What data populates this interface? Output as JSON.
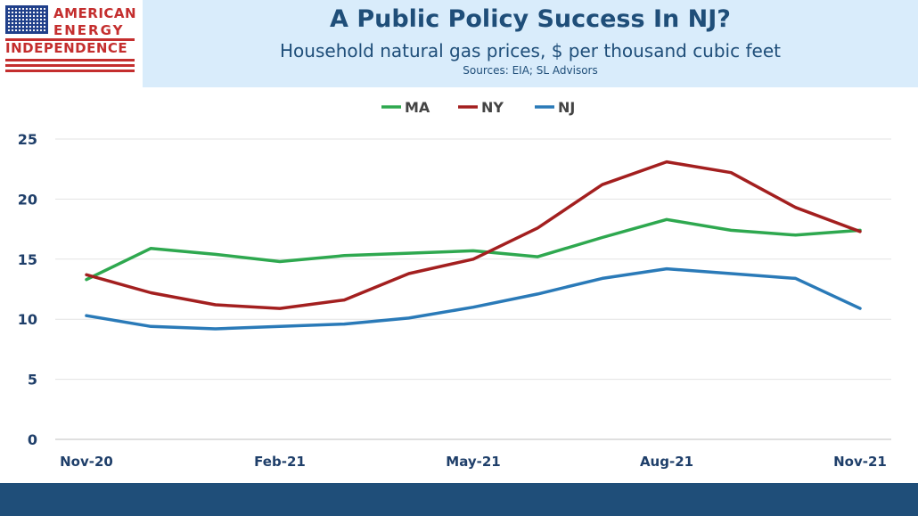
{
  "logo": {
    "line1": "AMERICAN",
    "line2": "ENERGY",
    "line3": "INDEPENDENCE"
  },
  "header": {
    "title": "A Public Policy Success In NJ?",
    "subtitle": "Household natural gas prices, $ per thousand cubic feet",
    "source": "Sources: EIA; SL Advisors"
  },
  "colors": {
    "MA": "#2ea84f",
    "NY": "#a31f1f",
    "NJ": "#2a7ab8",
    "header_bg": "#d9ecfb",
    "title": "#1f4e79",
    "footer": "#1f4e79"
  },
  "chart_data": {
    "type": "line",
    "title": "A Public Policy Success In NJ?",
    "subtitle": "Household natural gas prices, $ per thousand cubic feet",
    "categories": [
      "Nov-20",
      "Dec-20",
      "Jan-21",
      "Feb-21",
      "Mar-21",
      "Apr-21",
      "May-21",
      "Jun-21",
      "Jul-21",
      "Aug-21",
      "Sep-21",
      "Oct-21",
      "Nov-21"
    ],
    "x_tick_labels": [
      "Nov-20",
      "Feb-21",
      "May-21",
      "Aug-21",
      "Nov-21"
    ],
    "y_ticks": [
      0,
      5,
      10,
      15,
      20,
      25
    ],
    "ylim": [
      0,
      25
    ],
    "grid": true,
    "legend_position": "top-center",
    "series": [
      {
        "name": "MA",
        "values": [
          13.3,
          15.9,
          15.4,
          14.8,
          15.3,
          15.5,
          15.7,
          15.2,
          16.8,
          18.3,
          17.4,
          17.0,
          17.4
        ]
      },
      {
        "name": "NY",
        "values": [
          13.7,
          12.2,
          11.2,
          10.9,
          11.6,
          13.8,
          15.0,
          17.6,
          21.2,
          23.1,
          22.2,
          19.3,
          17.3
        ]
      },
      {
        "name": "NJ",
        "values": [
          10.3,
          9.4,
          9.2,
          9.4,
          9.6,
          10.1,
          11.0,
          12.1,
          13.4,
          14.2,
          13.8,
          13.4,
          10.9
        ]
      }
    ]
  }
}
